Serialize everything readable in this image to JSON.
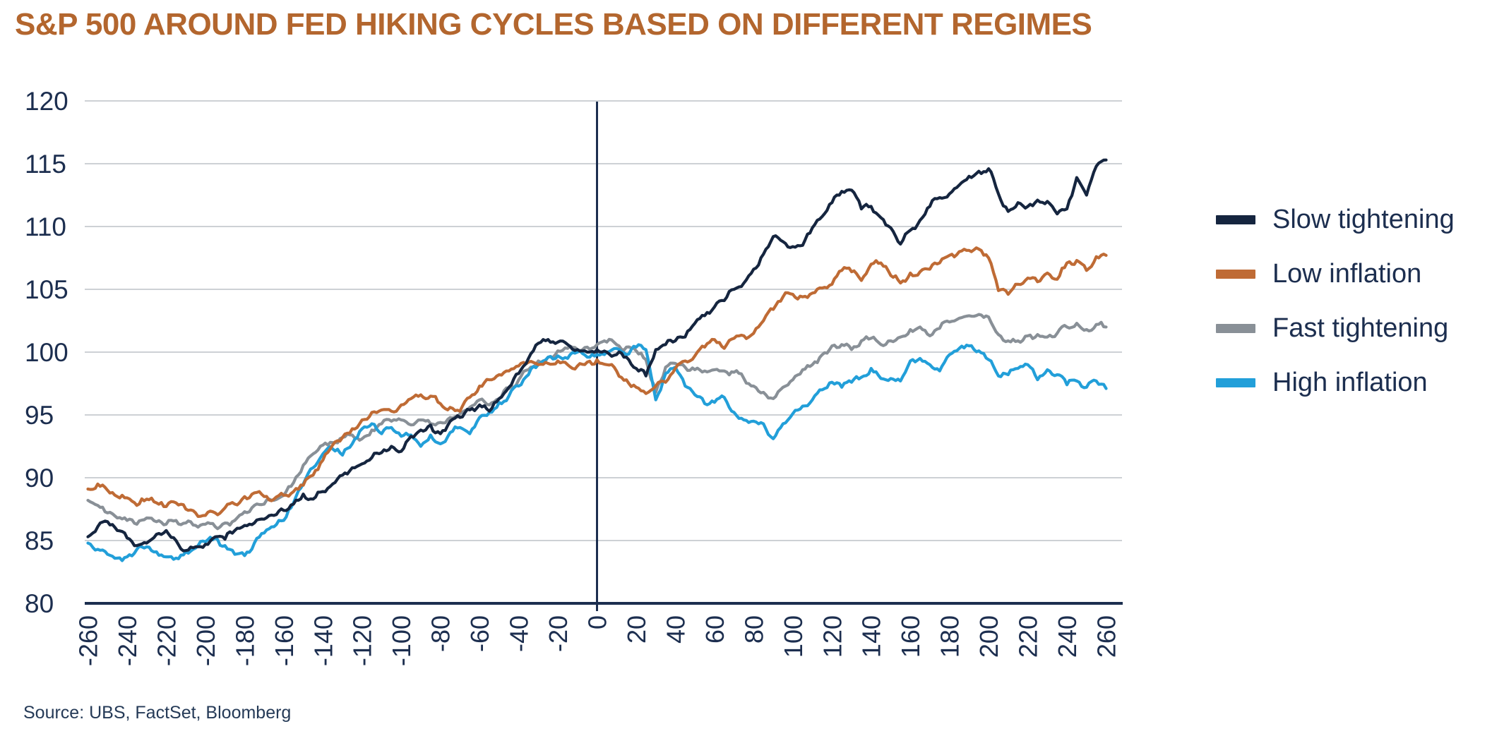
{
  "page": {
    "title": "S&P 500 AROUND FED HIKING CYCLES BASED ON DIFFERENT REGIMES",
    "source": "Source: UBS, FactSet, Bloomberg"
  },
  "colors": {
    "title": "#b3662e",
    "axis_text": "#1c2e4f",
    "axis_line": "#1c2e4f",
    "gridline": "#cdd1d5",
    "navy": "#15253f",
    "orange": "#bf6b35",
    "gray": "#899097",
    "blue": "#229fd9"
  },
  "chart_data": {
    "type": "line",
    "title": "S&P 500 AROUND FED HIKING CYCLES BASED ON DIFFERENT REGIMES",
    "source": "Source: UBS, FactSet, Bloomberg",
    "xlabel": "",
    "ylabel": "",
    "xlim": [
      -270,
      268
    ],
    "ylim": [
      80,
      120
    ],
    "grid": true,
    "legend_position": "right",
    "zero_line_x": 0,
    "y_ticks": [
      80,
      85,
      90,
      95,
      100,
      105,
      110,
      115,
      120
    ],
    "x_ticks": [
      -260,
      -240,
      -220,
      -200,
      -180,
      -160,
      -140,
      -120,
      -100,
      -80,
      -60,
      -40,
      -20,
      0,
      20,
      40,
      60,
      80,
      100,
      120,
      140,
      160,
      180,
      200,
      220,
      240,
      260
    ],
    "x": [
      -260,
      -255,
      -250,
      -245,
      -240,
      -235,
      -230,
      -225,
      -220,
      -215,
      -210,
      -205,
      -200,
      -195,
      -190,
      -185,
      -180,
      -175,
      -170,
      -165,
      -160,
      -155,
      -150,
      -145,
      -140,
      -135,
      -130,
      -125,
      -120,
      -115,
      -110,
      -105,
      -100,
      -95,
      -90,
      -85,
      -80,
      -75,
      -70,
      -65,
      -60,
      -55,
      -50,
      -45,
      -40,
      -35,
      -30,
      -25,
      -20,
      -15,
      -10,
      -5,
      0,
      5,
      10,
      15,
      20,
      25,
      30,
      35,
      40,
      45,
      50,
      55,
      60,
      65,
      70,
      75,
      80,
      85,
      90,
      95,
      100,
      105,
      110,
      115,
      120,
      125,
      130,
      135,
      140,
      145,
      150,
      155,
      160,
      165,
      170,
      175,
      180,
      185,
      190,
      195,
      200,
      205,
      210,
      215,
      220,
      225,
      230,
      235,
      240,
      245,
      250,
      255,
      260
    ],
    "series": [
      {
        "name": "Slow tightening",
        "color": "#15253f",
        "values": [
          85.3,
          86.1,
          86.5,
          85.8,
          85.2,
          84.6,
          84.8,
          85.5,
          85.8,
          85.0,
          84.2,
          84.5,
          84.7,
          85.3,
          85.1,
          85.8,
          86.2,
          86.4,
          86.7,
          87.0,
          87.4,
          87.9,
          88.7,
          88.3,
          88.9,
          89.5,
          90.2,
          90.8,
          91.1,
          91.6,
          92.0,
          92.5,
          92.1,
          93.3,
          93.8,
          94.2,
          93.5,
          94.5,
          94.8,
          95.4,
          95.8,
          95.3,
          96.3,
          97.2,
          98.3,
          99.5,
          100.7,
          101.0,
          100.8,
          100.6,
          100.2,
          100.0,
          100.2,
          100.0,
          99.8,
          99.6,
          98.7,
          98.1,
          100.2,
          100.6,
          100.9,
          101.2,
          102.3,
          102.9,
          103.6,
          104.1,
          105.0,
          105.5,
          106.6,
          107.8,
          109.2,
          108.8,
          108.4,
          108.5,
          109.9,
          110.8,
          111.9,
          112.8,
          112.9,
          111.4,
          111.6,
          110.7,
          109.9,
          108.6,
          109.7,
          110.5,
          111.6,
          112.3,
          112.6,
          113.3,
          114.0,
          114.4,
          114.6,
          112.6,
          111.2,
          111.9,
          111.6,
          112.1,
          112.0,
          111.0,
          111.4,
          113.9,
          112.5,
          114.8,
          115.3
        ]
      },
      {
        "name": "Low inflation",
        "color": "#bf6b35",
        "values": [
          89.1,
          89.5,
          89.0,
          88.5,
          88.4,
          87.8,
          88.3,
          88.0,
          87.7,
          88.0,
          87.5,
          87.2,
          87.0,
          87.2,
          87.6,
          87.9,
          88.5,
          88.8,
          88.5,
          88.3,
          88.6,
          88.9,
          89.4,
          90.2,
          91.4,
          92.6,
          93.2,
          93.9,
          94.6,
          95.2,
          95.4,
          95.3,
          95.8,
          96.3,
          96.6,
          96.5,
          95.9,
          95.6,
          95.3,
          96.4,
          97.3,
          97.8,
          98.2,
          98.5,
          98.9,
          99.2,
          99.0,
          99.1,
          99.3,
          99.0,
          98.9,
          99.2,
          99.4,
          99.0,
          98.5,
          97.8,
          97.2,
          96.7,
          97.3,
          97.6,
          98.7,
          99.3,
          99.7,
          100.4,
          101.0,
          100.3,
          101.1,
          101.3,
          101.5,
          102.5,
          103.4,
          104.4,
          104.6,
          104.4,
          104.7,
          105.1,
          105.4,
          106.5,
          106.4,
          105.7,
          107.0,
          107.1,
          106.1,
          105.5,
          106.3,
          106.4,
          106.6,
          107.1,
          107.7,
          108.0,
          108.1,
          108.2,
          107.5,
          104.9,
          104.6,
          105.4,
          105.9,
          105.6,
          106.3,
          105.8,
          107.1,
          107.3,
          106.5,
          107.6,
          107.7
        ]
      },
      {
        "name": "Fast tightening",
        "color": "#899097",
        "values": [
          88.2,
          87.8,
          87.2,
          86.8,
          86.6,
          86.3,
          86.8,
          86.5,
          86.3,
          86.6,
          86.4,
          86.2,
          86.3,
          86.1,
          86.4,
          86.6,
          87.3,
          87.8,
          87.9,
          88.2,
          88.6,
          89.6,
          91.0,
          91.9,
          92.6,
          92.8,
          93.2,
          93.4,
          93.1,
          93.8,
          94.3,
          94.5,
          94.6,
          94.2,
          94.6,
          94.3,
          94.4,
          94.8,
          95.1,
          95.6,
          96.2,
          95.8,
          96.3,
          97.1,
          97.8,
          98.6,
          99.3,
          99.6,
          100.1,
          100.3,
          100.2,
          100.4,
          100.6,
          100.8,
          100.6,
          100.4,
          100.1,
          99.4,
          96.8,
          98.8,
          99.1,
          98.8,
          98.6,
          98.5,
          98.6,
          98.5,
          98.4,
          97.9,
          97.3,
          96.8,
          96.3,
          97.2,
          97.8,
          98.6,
          99.0,
          99.8,
          100.5,
          100.6,
          100.2,
          100.9,
          101.1,
          100.6,
          100.9,
          101.2,
          101.8,
          102.0,
          101.3,
          101.9,
          102.4,
          102.7,
          102.9,
          103.0,
          102.8,
          101.4,
          100.9,
          100.9,
          101.3,
          101.4,
          101.2,
          101.5,
          102.0,
          102.3,
          101.8,
          102.2,
          102.0
        ]
      },
      {
        "name": "High inflation",
        "color": "#229fd9",
        "values": [
          84.8,
          84.3,
          83.9,
          83.6,
          83.7,
          84.3,
          84.5,
          84.1,
          83.7,
          83.6,
          84.1,
          84.4,
          84.9,
          85.2,
          84.6,
          83.9,
          83.8,
          84.8,
          85.6,
          86.1,
          86.6,
          88.0,
          89.5,
          90.8,
          91.9,
          92.3,
          91.8,
          92.7,
          93.9,
          94.3,
          93.5,
          94.0,
          93.3,
          93.4,
          92.5,
          93.4,
          92.7,
          93.6,
          94.0,
          93.5,
          94.8,
          95.2,
          96.0,
          96.5,
          97.3,
          98.2,
          99.0,
          99.6,
          99.7,
          99.5,
          100.0,
          99.6,
          99.8,
          100.0,
          100.3,
          99.8,
          100.4,
          100.2,
          96.2,
          98.3,
          98.8,
          97.3,
          96.6,
          95.9,
          96.0,
          96.4,
          95.2,
          94.6,
          94.5,
          94.3,
          93.1,
          94.3,
          95.1,
          95.7,
          96.2,
          97.0,
          97.6,
          97.2,
          97.6,
          98.0,
          98.7,
          97.9,
          97.9,
          97.7,
          99.3,
          99.5,
          99.0,
          98.5,
          99.8,
          100.3,
          100.5,
          100.1,
          99.4,
          98.1,
          98.2,
          98.7,
          99.0,
          97.8,
          98.6,
          98.2,
          97.4,
          97.7,
          97.2,
          97.7,
          97.1
        ]
      }
    ]
  }
}
